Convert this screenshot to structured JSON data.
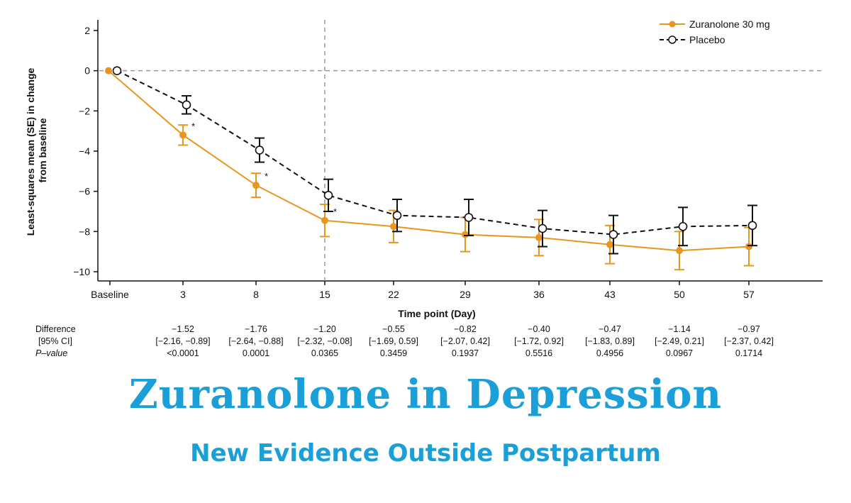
{
  "chart_data": {
    "type": "line",
    "ylabel": "Least-squares mean (SE) in change from baseline",
    "ylabel_lines": [
      "Least-squares mean (SE) in change",
      "from baseline"
    ],
    "xlabel": "Time point (Day)",
    "categories": [
      "Baseline",
      "3",
      "8",
      "15",
      "22",
      "29",
      "36",
      "43",
      "50",
      "57"
    ],
    "yticks": [
      "2",
      "0",
      "−2",
      "−4",
      "−6",
      "−8",
      "−10"
    ],
    "ylim": [
      -10.5,
      2.5
    ],
    "reference_line_y": 0,
    "reference_line_x": "15",
    "series": [
      {
        "name": "Zuranolone 30 mg",
        "color": "#e8961e",
        "marker": "filled-circle",
        "values": [
          0,
          -3.2,
          -5.7,
          -7.45,
          -7.75,
          -8.15,
          -8.3,
          -8.65,
          -8.95,
          -8.75
        ],
        "se": [
          0,
          0.5,
          0.6,
          0.8,
          0.8,
          0.85,
          0.9,
          0.95,
          0.95,
          0.95
        ]
      },
      {
        "name": "Placebo",
        "color": "#111111",
        "marker": "open-circle",
        "values": [
          0,
          -1.7,
          -3.95,
          -6.2,
          -7.2,
          -7.3,
          -7.85,
          -8.15,
          -7.75,
          -7.7
        ],
        "se": [
          0,
          0.45,
          0.6,
          0.8,
          0.8,
          0.9,
          0.9,
          0.95,
          0.95,
          1.0
        ]
      }
    ],
    "significance_markers": [
      {
        "category": "3",
        "label": "*"
      },
      {
        "category": "8",
        "label": "*"
      },
      {
        "category": "15",
        "label": "*"
      }
    ],
    "legend": {
      "position": "top-right",
      "entries": [
        "Zuranolone 30 mg",
        "Placebo"
      ]
    },
    "table": {
      "row_labels": [
        "Difference",
        "[95% CI]",
        "P–value"
      ],
      "columns": [
        {
          "day": "3",
          "difference": "−1.52",
          "ci": "[−2.16, −0.89]",
          "p": "<0.0001"
        },
        {
          "day": "8",
          "difference": "−1.76",
          "ci": "[−2.64, −0.88]",
          "p": "0.0001"
        },
        {
          "day": "15",
          "difference": "−1.20",
          "ci": "[−2.32, −0.08]",
          "p": "0.0365"
        },
        {
          "day": "22",
          "difference": "−0.55",
          "ci": "[−1.69, 0.59]",
          "p": "0.3459"
        },
        {
          "day": "29",
          "difference": "−0.82",
          "ci": "[−2.07, 0.42]",
          "p": "0.1937"
        },
        {
          "day": "36",
          "difference": "−0.40",
          "ci": "[−1.72, 0.92]",
          "p": "0.5516"
        },
        {
          "day": "43",
          "difference": "−0.47",
          "ci": "[−1.83, 0.89]",
          "p": "0.4956"
        },
        {
          "day": "50",
          "difference": "−1.14",
          "ci": "[−2.49, 0.21]",
          "p": "0.0967"
        },
        {
          "day": "57",
          "difference": "−0.97",
          "ci": "[−2.37, 0.42]",
          "p": "0.1714"
        }
      ]
    }
  },
  "headline": {
    "title": "Zuranolone in Depression",
    "subtitle": "New Evidence Outside Postpartum"
  }
}
